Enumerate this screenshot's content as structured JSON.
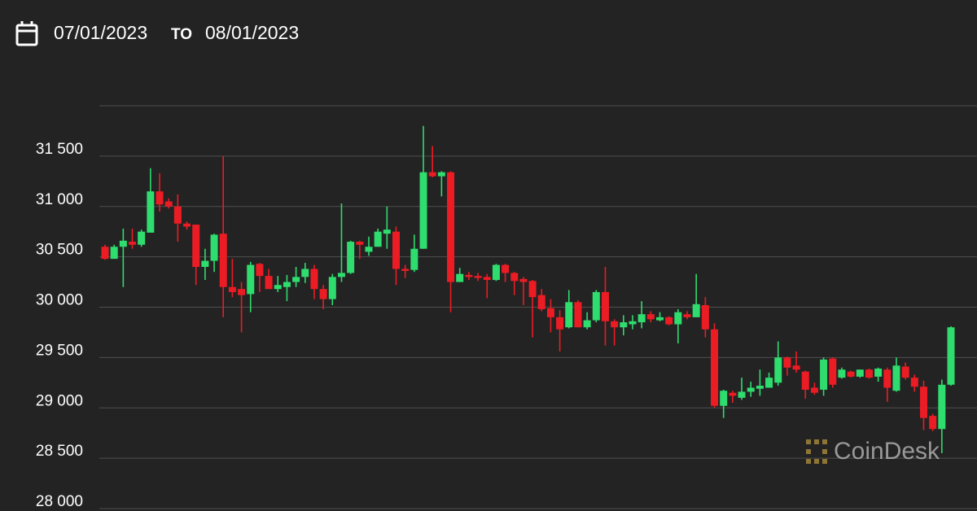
{
  "header": {
    "date_from": "07/01/2023",
    "separator": "TO",
    "date_to": "08/01/2023"
  },
  "watermark": "CoinDesk",
  "chart_data": {
    "type": "candlestick",
    "open": [
      30600,
      30480,
      30600,
      30650,
      30620,
      30740,
      31150,
      31050,
      31000,
      30830,
      30820,
      30400,
      30460,
      30730,
      30200,
      30180,
      30130,
      30430,
      30310,
      30180,
      30200,
      30250,
      30300,
      30380,
      30180,
      30080,
      30300,
      30340,
      30650,
      30550,
      30600,
      30730,
      30750,
      30380,
      30370,
      30580,
      31340,
      31300,
      31340,
      30250,
      30320,
      30310,
      30300,
      30270,
      30420,
      30340,
      30280,
      30260,
      30120,
      29990,
      29900,
      29800,
      30050,
      29800,
      29870,
      30150,
      29860,
      29800,
      29830,
      29850,
      29930,
      29870,
      29900,
      29830,
      29930,
      29900,
      30020,
      29780,
      29020,
      29150,
      29100,
      29160,
      29190,
      29200,
      29250,
      29500,
      29420,
      29360,
      29200,
      29180,
      29490,
      29300,
      29360,
      29310,
      29380,
      29310,
      29380,
      29170,
      29410,
      29300,
      29210,
      28920,
      28790,
      29230
    ],
    "high": [
      30620,
      30620,
      30780,
      30780,
      30770,
      31380,
      31330,
      31080,
      31120,
      30850,
      30820,
      30580,
      30730,
      31500,
      30480,
      30250,
      30450,
      30440,
      30380,
      30310,
      30320,
      30400,
      30440,
      30420,
      30220,
      30330,
      31030,
      30660,
      30660,
      30700,
      30780,
      31000,
      30800,
      30420,
      30720,
      31800,
      31600,
      31350,
      31350,
      30390,
      30350,
      30340,
      30330,
      30430,
      30430,
      30350,
      30300,
      30270,
      30180,
      30080,
      29970,
      30170,
      30070,
      29950,
      30170,
      30400,
      29880,
      29920,
      29920,
      30060,
      29960,
      29950,
      29910,
      29980,
      29960,
      30330,
      30100,
      29840,
      29180,
      29170,
      29300,
      29260,
      29380,
      29350,
      29660,
      29510,
      29560,
      29370,
      29250,
      29500,
      29500,
      29400,
      29370,
      29380,
      29390,
      29400,
      29400,
      29500,
      29450,
      29330,
      29270,
      28940,
      29280,
      29810
    ],
    "low": [
      30470,
      30480,
      30200,
      30580,
      30600,
      30740,
      30950,
      30980,
      30650,
      30770,
      30220,
      30270,
      30350,
      29900,
      30100,
      29750,
      29950,
      30150,
      30180,
      30150,
      30060,
      30200,
      30240,
      30080,
      29980,
      30020,
      30250,
      30330,
      30480,
      30510,
      30600,
      30580,
      30220,
      30290,
      30350,
      30580,
      31290,
      31100,
      29950,
      30250,
      30270,
      30260,
      30090,
      30260,
      30250,
      30120,
      30020,
      29700,
      29960,
      29750,
      29560,
      29790,
      29800,
      29780,
      29850,
      29620,
      29620,
      29720,
      29780,
      29790,
      29850,
      29860,
      29820,
      29640,
      29880,
      29900,
      29700,
      29000,
      28900,
      29050,
      29080,
      29110,
      29120,
      29200,
      29220,
      29320,
      29350,
      29090,
      29130,
      29120,
      29200,
      29290,
      29300,
      29300,
      29290,
      29260,
      29060,
      29160,
      29280,
      29160,
      28780,
      28770,
      28550,
      29220
    ],
    "close": [
      30480,
      30600,
      30660,
      30620,
      30750,
      31150,
      31020,
      31000,
      30830,
      30800,
      30400,
      30460,
      30720,
      30200,
      30150,
      30120,
      30420,
      30310,
      30180,
      30220,
      30250,
      30300,
      30380,
      30180,
      30080,
      30300,
      30340,
      30650,
      30620,
      30600,
      30750,
      30770,
      30380,
      30360,
      30580,
      31340,
      31300,
      31340,
      30250,
      30330,
      30300,
      30290,
      30270,
      30420,
      30340,
      30260,
      30250,
      30100,
      29980,
      29900,
      29780,
      30050,
      29800,
      29870,
      30150,
      29860,
      29800,
      29850,
      29860,
      29930,
      29880,
      29900,
      29830,
      29950,
      29900,
      30030,
      29780,
      29020,
      29170,
      29120,
      29160,
      29200,
      29220,
      29300,
      29500,
      29400,
      29380,
      29180,
      29150,
      29480,
      29230,
      29380,
      29310,
      29380,
      29300,
      29390,
      29200,
      29420,
      29300,
      29210,
      28900,
      28790,
      29230,
      29800
    ],
    "up_color": "#2fdc6e",
    "down_color": "#ec1c24",
    "grid_color": "#4f4f4f",
    "ylim": [
      28000,
      32000
    ],
    "yticks": [
      {
        "value": 28000,
        "label": "28 000"
      },
      {
        "value": 28500,
        "label": "28 500"
      },
      {
        "value": 29000,
        "label": "29 000"
      },
      {
        "value": 29500,
        "label": "29 500"
      },
      {
        "value": 30000,
        "label": "30 000"
      },
      {
        "value": 30500,
        "label": "30 500"
      },
      {
        "value": 31000,
        "label": "31 000"
      },
      {
        "value": 31500,
        "label": "31 500"
      }
    ],
    "grid": true
  }
}
